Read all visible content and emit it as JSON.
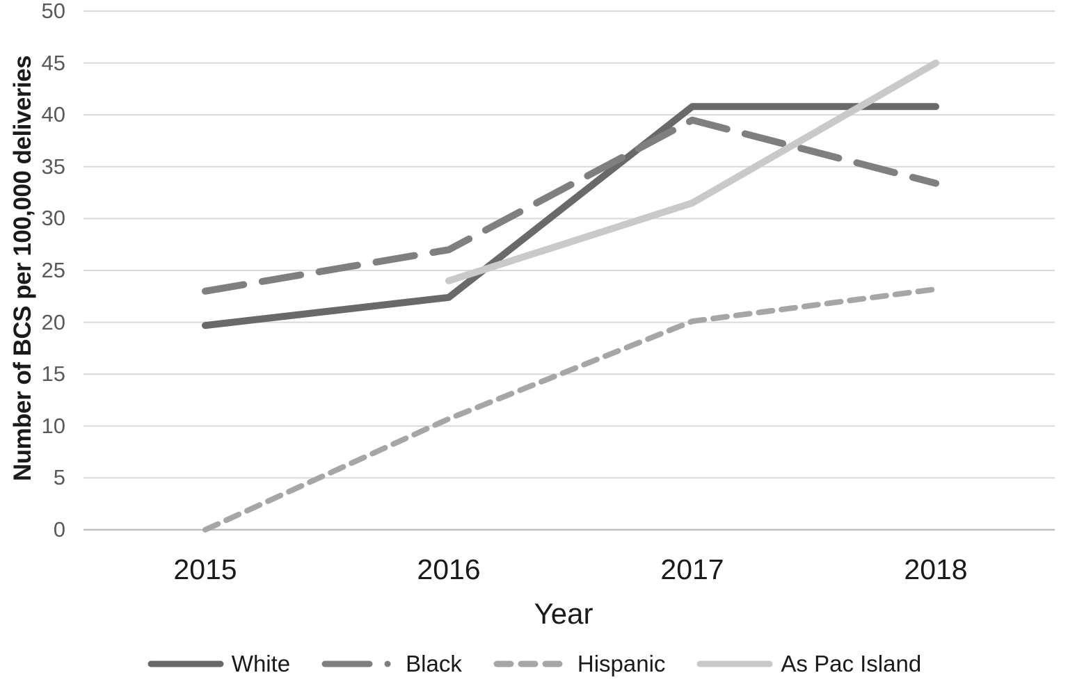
{
  "page_background": "#ffffff",
  "chart_data": {
    "type": "line",
    "x": [
      "2015",
      "2016",
      "2017",
      "2018"
    ],
    "series": [
      {
        "name": "White",
        "values": [
          19.7,
          22.4,
          40.8,
          40.8
        ],
        "color": "#696969",
        "style": "solid",
        "width": 10
      },
      {
        "name": "Black",
        "values": [
          23.0,
          27.0,
          39.5,
          33.4
        ],
        "color": "#7f7f7f",
        "style": "long-dash",
        "width": 10
      },
      {
        "name": "Hispanic",
        "values": [
          0.0,
          10.7,
          20.1,
          23.2
        ],
        "color": "#a6a6a6",
        "style": "short-dash",
        "width": 8
      },
      {
        "name": "As Pac Island",
        "values": [
          null,
          24.0,
          31.5,
          45.0
        ],
        "color": "#c9c9c9",
        "style": "solid",
        "width": 10
      }
    ],
    "xlabel": "Year",
    "ylabel": "Number of BCS per 100,000 deliveries",
    "ylim": [
      0,
      50
    ],
    "yticks": [
      0,
      5,
      10,
      15,
      20,
      25,
      30,
      35,
      40,
      45,
      50
    ],
    "grid": true,
    "legend_position": "bottom",
    "colors": {
      "gridline": "#d9d9d9",
      "axis_line": "#c0c0c0",
      "y_tick_label": "#595959",
      "x_tick_label": "#1a1a1a",
      "axis_title": "#1a1a1a"
    }
  }
}
